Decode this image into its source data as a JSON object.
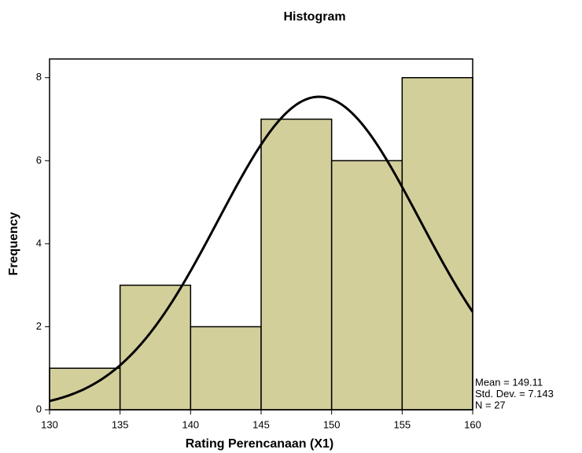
{
  "chart_data": {
    "type": "histogram",
    "title": "Histogram",
    "x_label": "Rating Perencanaan (X1)",
    "y_label": "Frequency",
    "bins": [
      130,
      135,
      140,
      145,
      150,
      155,
      160
    ],
    "values": [
      1,
      3,
      2,
      7,
      6,
      8
    ],
    "color": "#d3cf9b",
    "xlim": [
      130,
      160
    ],
    "xticks": [
      130,
      135,
      140,
      145,
      150,
      155,
      160
    ],
    "ylim": [
      0,
      8.45
    ],
    "yticks": [
      0,
      2,
      4,
      6,
      8
    ],
    "normal_curve": {
      "mean": {
        "value": 149.11,
        "label": "Mean = 149.11"
      },
      "std_dev": {
        "value": 7.143,
        "label": "Std. Dev. = 7.143"
      },
      "n": {
        "value": 27,
        "label": "N = 27"
      }
    }
  }
}
